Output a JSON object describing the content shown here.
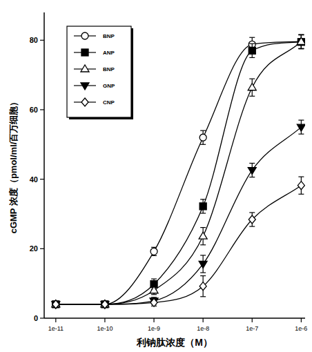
{
  "chart_data": {
    "type": "line",
    "x_label": "利钠肽浓度（M）",
    "y_label": "cGMP 浓度（pmol/ml/百万细胞）",
    "log": "x",
    "legend": "top-left",
    "grid": false,
    "x": [
      1e-11,
      1e-10,
      1e-09,
      1e-08,
      1e-07,
      1e-06
    ],
    "xlim": [
      5.8e-12,
      1.2e-06
    ],
    "xticks": [
      {
        "value": 1e-11,
        "label": "1e-11"
      },
      {
        "value": 1e-10,
        "label": "1e-10"
      },
      {
        "value": 1e-09,
        "label": "1e-9"
      },
      {
        "value": 1e-08,
        "label": "1e-8"
      },
      {
        "value": 1e-07,
        "label": "1e-7"
      },
      {
        "value": 1e-06,
        "label": "1e-6"
      }
    ],
    "ylim": [
      0,
      88
    ],
    "yticks": [
      0,
      20,
      40,
      60,
      80
    ],
    "series": [
      {
        "name": "BNP",
        "color": "#000000",
        "marker": "circle-open",
        "line_style": "solid",
        "values": [
          4,
          4,
          19.2,
          52,
          78.8,
          79.6
        ],
        "errors": [
          0.8,
          0.8,
          1.2,
          2,
          2,
          2
        ]
      },
      {
        "name": "ANP",
        "color": "#000000",
        "marker": "square",
        "line_style": "solid",
        "values": [
          4,
          4,
          9.8,
          32.2,
          77,
          79.5
        ],
        "errors": [
          0.8,
          0.8,
          1.5,
          2,
          2,
          2
        ]
      },
      {
        "name": "BNP",
        "color": "#000000",
        "marker": "triangle-open",
        "line_style": "solid",
        "values": [
          4,
          4,
          8,
          23.6,
          66.4,
          79.6
        ],
        "errors": [
          0.8,
          0.8,
          1.2,
          2.5,
          2.5,
          2
        ]
      },
      {
        "name": "GNP",
        "color": "#000000",
        "marker": "triangle-down",
        "line_style": "solid",
        "values": [
          4,
          4,
          5,
          15.6,
          42.6,
          55
        ],
        "errors": [
          0.8,
          0.8,
          1,
          2.5,
          2,
          2
        ]
      },
      {
        "name": "CNP",
        "color": "#000000",
        "marker": "diamond-open",
        "line_style": "solid",
        "values": [
          4,
          4,
          4.5,
          9.2,
          28.4,
          38.2
        ],
        "errors": [
          0.8,
          0.8,
          1,
          3,
          2,
          2.5
        ]
      }
    ]
  }
}
